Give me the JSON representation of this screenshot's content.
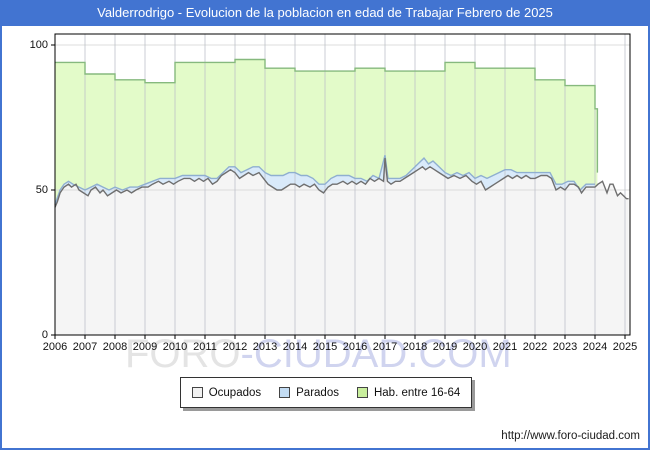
{
  "window": {
    "title": "Valderrodrigo - Evolucion de la poblacion en edad de Trabajar Febrero de 2025",
    "title_bg": "#4274d1",
    "url": "http://www.foro-ciudad.com"
  },
  "watermark": {
    "left": "FORO",
    "right": "-CIUDAD.COM"
  },
  "legend": [
    {
      "label": "Ocupados",
      "swatch": "#f2f2f2"
    },
    {
      "label": "Parados",
      "swatch": "#c3dcf3"
    },
    {
      "label": "Hab. entre 16-64",
      "swatch": "#c9ef9d"
    }
  ],
  "chart_data": {
    "type": "area",
    "title": "Valderrodrigo - Evolucion de la poblacion en edad de Trabajar Febrero de 2025",
    "xlabel": "",
    "ylabel": "",
    "xlim": [
      2006,
      2025.17
    ],
    "ylim": [
      0,
      100
    ],
    "x_ticks": [
      2006,
      2007,
      2008,
      2009,
      2010,
      2011,
      2012,
      2013,
      2014,
      2015,
      2016,
      2017,
      2018,
      2019,
      2020,
      2021,
      2022,
      2023,
      2024,
      2025
    ],
    "y_ticks": [
      0,
      50,
      100
    ],
    "grid": true,
    "legend_position": "bottom",
    "series": [
      {
        "name": "Hab. entre 16-64",
        "render": "yearly-steps",
        "fill": "#e3fbc9",
        "stroke": "#86b97e",
        "years": [
          2006,
          2007,
          2008,
          2009,
          2010,
          2011,
          2012,
          2013,
          2014,
          2015,
          2016,
          2017,
          2018,
          2019,
          2020,
          2021,
          2022,
          2023
        ],
        "values": [
          94,
          90,
          88,
          87,
          94,
          94,
          95,
          92,
          91,
          91,
          92,
          91,
          91,
          94,
          92,
          92,
          88,
          86
        ],
        "final_point": {
          "x": 2024.08,
          "value": 78
        }
      },
      {
        "name": "Parados",
        "render": "area",
        "stacking": "drawn as Ocupados+Parados",
        "fill": "#d9eafa",
        "stroke": "#8fafd0",
        "points": [
          [
            2006.0,
            45
          ],
          [
            2006.17,
            50
          ],
          [
            2006.3,
            52
          ],
          [
            2006.45,
            53
          ],
          [
            2006.6,
            52
          ],
          [
            2006.8,
            51
          ],
          [
            2007.0,
            50
          ],
          [
            2007.2,
            51
          ],
          [
            2007.4,
            52
          ],
          [
            2007.6,
            51
          ],
          [
            2007.8,
            50
          ],
          [
            2008.0,
            51
          ],
          [
            2008.25,
            50
          ],
          [
            2008.5,
            51
          ],
          [
            2008.75,
            51
          ],
          [
            2009.0,
            52
          ],
          [
            2009.25,
            53
          ],
          [
            2009.5,
            54
          ],
          [
            2009.75,
            54
          ],
          [
            2010.0,
            54
          ],
          [
            2010.25,
            55
          ],
          [
            2010.5,
            55
          ],
          [
            2010.75,
            55
          ],
          [
            2011.0,
            55
          ],
          [
            2011.2,
            54
          ],
          [
            2011.4,
            54
          ],
          [
            2011.6,
            56
          ],
          [
            2011.8,
            58
          ],
          [
            2012.0,
            58
          ],
          [
            2012.2,
            56
          ],
          [
            2012.4,
            57
          ],
          [
            2012.6,
            58
          ],
          [
            2012.8,
            58
          ],
          [
            2013.0,
            56
          ],
          [
            2013.2,
            55
          ],
          [
            2013.4,
            55
          ],
          [
            2013.6,
            55
          ],
          [
            2013.8,
            56
          ],
          [
            2014.0,
            56
          ],
          [
            2014.2,
            55
          ],
          [
            2014.4,
            55
          ],
          [
            2014.6,
            54
          ],
          [
            2014.8,
            52
          ],
          [
            2015.0,
            52
          ],
          [
            2015.2,
            54
          ],
          [
            2015.4,
            55
          ],
          [
            2015.6,
            55
          ],
          [
            2015.8,
            55
          ],
          [
            2016.0,
            54
          ],
          [
            2016.2,
            54
          ],
          [
            2016.4,
            53
          ],
          [
            2016.6,
            55
          ],
          [
            2016.8,
            54
          ],
          [
            2017.0,
            62
          ],
          [
            2017.1,
            54
          ],
          [
            2017.3,
            54
          ],
          [
            2017.5,
            54
          ],
          [
            2017.7,
            55
          ],
          [
            2017.9,
            57
          ],
          [
            2018.1,
            59
          ],
          [
            2018.3,
            61
          ],
          [
            2018.45,
            59
          ],
          [
            2018.6,
            60
          ],
          [
            2018.8,
            58
          ],
          [
            2019.0,
            56
          ],
          [
            2019.2,
            55
          ],
          [
            2019.4,
            56
          ],
          [
            2019.6,
            55
          ],
          [
            2019.8,
            56
          ],
          [
            2020.0,
            54
          ],
          [
            2020.2,
            55
          ],
          [
            2020.4,
            54
          ],
          [
            2020.6,
            55
          ],
          [
            2020.8,
            56
          ],
          [
            2021.0,
            57
          ],
          [
            2021.2,
            57
          ],
          [
            2021.4,
            56
          ],
          [
            2021.6,
            56
          ],
          [
            2021.8,
            56
          ],
          [
            2022.0,
            56
          ],
          [
            2022.2,
            56
          ],
          [
            2022.5,
            56
          ],
          [
            2022.7,
            52
          ],
          [
            2022.9,
            52
          ],
          [
            2023.1,
            53
          ],
          [
            2023.3,
            53
          ],
          [
            2023.5,
            50
          ],
          [
            2023.7,
            52
          ],
          [
            2023.9,
            52
          ],
          [
            2024.0,
            52
          ]
        ]
      },
      {
        "name": "Ocupados",
        "render": "area",
        "fill": "#f5f5f5",
        "stroke": "#6f6f6f",
        "points": [
          [
            2006.0,
            44
          ],
          [
            2006.08,
            46
          ],
          [
            2006.17,
            49
          ],
          [
            2006.3,
            51
          ],
          [
            2006.45,
            52
          ],
          [
            2006.55,
            51
          ],
          [
            2006.7,
            52
          ],
          [
            2006.8,
            50
          ],
          [
            2006.95,
            49
          ],
          [
            2007.1,
            48
          ],
          [
            2007.2,
            50
          ],
          [
            2007.35,
            51
          ],
          [
            2007.5,
            49
          ],
          [
            2007.6,
            50
          ],
          [
            2007.75,
            48
          ],
          [
            2007.9,
            49
          ],
          [
            2008.05,
            50
          ],
          [
            2008.2,
            49
          ],
          [
            2008.4,
            50
          ],
          [
            2008.55,
            49
          ],
          [
            2008.7,
            50
          ],
          [
            2008.9,
            51
          ],
          [
            2009.1,
            51
          ],
          [
            2009.25,
            52
          ],
          [
            2009.45,
            53
          ],
          [
            2009.6,
            52
          ],
          [
            2009.8,
            53
          ],
          [
            2009.95,
            52
          ],
          [
            2010.1,
            53
          ],
          [
            2010.3,
            54
          ],
          [
            2010.5,
            54
          ],
          [
            2010.65,
            53
          ],
          [
            2010.8,
            54
          ],
          [
            2010.95,
            53
          ],
          [
            2011.1,
            54
          ],
          [
            2011.25,
            52
          ],
          [
            2011.4,
            53
          ],
          [
            2011.55,
            55
          ],
          [
            2011.7,
            56
          ],
          [
            2011.85,
            57
          ],
          [
            2012.0,
            56
          ],
          [
            2012.15,
            54
          ],
          [
            2012.3,
            55
          ],
          [
            2012.45,
            56
          ],
          [
            2012.6,
            55
          ],
          [
            2012.8,
            56
          ],
          [
            2012.95,
            54
          ],
          [
            2013.1,
            52
          ],
          [
            2013.25,
            51
          ],
          [
            2013.4,
            50
          ],
          [
            2013.55,
            50
          ],
          [
            2013.7,
            51
          ],
          [
            2013.85,
            52
          ],
          [
            2014.0,
            52
          ],
          [
            2014.15,
            51
          ],
          [
            2014.3,
            52
          ],
          [
            2014.5,
            51
          ],
          [
            2014.65,
            52
          ],
          [
            2014.8,
            50
          ],
          [
            2014.95,
            49
          ],
          [
            2015.1,
            51
          ],
          [
            2015.25,
            52
          ],
          [
            2015.4,
            52
          ],
          [
            2015.6,
            53
          ],
          [
            2015.75,
            52
          ],
          [
            2015.9,
            53
          ],
          [
            2016.05,
            52
          ],
          [
            2016.2,
            53
          ],
          [
            2016.35,
            52
          ],
          [
            2016.5,
            54
          ],
          [
            2016.65,
            53
          ],
          [
            2016.8,
            54
          ],
          [
            2016.95,
            53
          ],
          [
            2017.0,
            61
          ],
          [
            2017.08,
            53
          ],
          [
            2017.2,
            52
          ],
          [
            2017.35,
            53
          ],
          [
            2017.5,
            53
          ],
          [
            2017.65,
            54
          ],
          [
            2017.8,
            55
          ],
          [
            2017.95,
            56
          ],
          [
            2018.1,
            57
          ],
          [
            2018.25,
            58
          ],
          [
            2018.35,
            57
          ],
          [
            2018.5,
            58
          ],
          [
            2018.65,
            57
          ],
          [
            2018.8,
            56
          ],
          [
            2018.95,
            55
          ],
          [
            2019.1,
            54
          ],
          [
            2019.3,
            55
          ],
          [
            2019.5,
            54
          ],
          [
            2019.7,
            55
          ],
          [
            2019.9,
            53
          ],
          [
            2020.05,
            52
          ],
          [
            2020.2,
            53
          ],
          [
            2020.35,
            50
          ],
          [
            2020.5,
            51
          ],
          [
            2020.65,
            52
          ],
          [
            2020.8,
            53
          ],
          [
            2020.95,
            54
          ],
          [
            2021.1,
            55
          ],
          [
            2021.25,
            54
          ],
          [
            2021.4,
            55
          ],
          [
            2021.55,
            54
          ],
          [
            2021.7,
            55
          ],
          [
            2021.85,
            54
          ],
          [
            2022.0,
            54
          ],
          [
            2022.2,
            55
          ],
          [
            2022.4,
            55
          ],
          [
            2022.55,
            54
          ],
          [
            2022.7,
            50
          ],
          [
            2022.85,
            51
          ],
          [
            2023.0,
            50
          ],
          [
            2023.15,
            52
          ],
          [
            2023.3,
            52
          ],
          [
            2023.45,
            51
          ],
          [
            2023.55,
            49
          ],
          [
            2023.7,
            51
          ],
          [
            2023.85,
            51
          ],
          [
            2024.0,
            51
          ],
          [
            2024.1,
            52
          ],
          [
            2024.25,
            53
          ],
          [
            2024.4,
            49
          ],
          [
            2024.5,
            52
          ],
          [
            2024.6,
            52
          ],
          [
            2024.75,
            48
          ],
          [
            2024.85,
            49
          ],
          [
            2024.95,
            48
          ],
          [
            2025.05,
            47
          ],
          [
            2025.12,
            47
          ]
        ]
      }
    ]
  }
}
